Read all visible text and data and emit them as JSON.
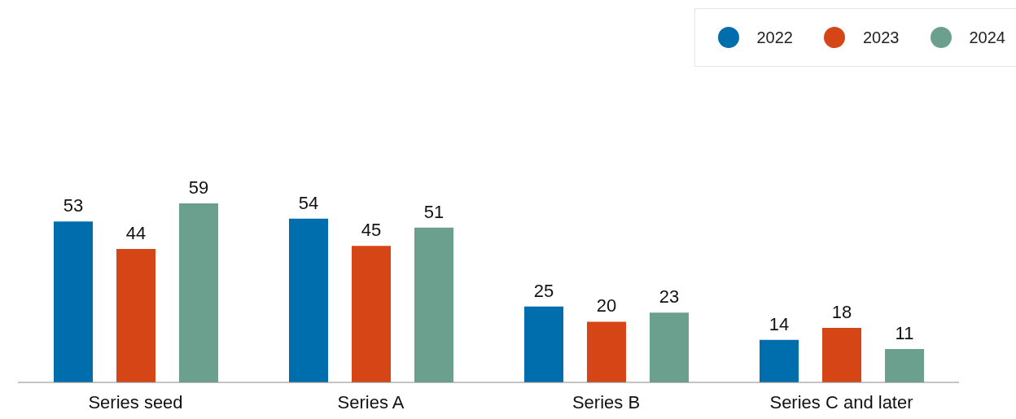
{
  "chart_data": {
    "type": "bar",
    "categories": [
      "Series seed",
      "Series A",
      "Series B",
      "Series C and later"
    ],
    "series": [
      {
        "name": "2022",
        "color": "#006ead",
        "values": [
          53,
          54,
          25,
          14
        ]
      },
      {
        "name": "2023",
        "color": "#d54516",
        "values": [
          44,
          45,
          20,
          18
        ]
      },
      {
        "name": "2024",
        "color": "#6ba08e",
        "values": [
          59,
          51,
          23,
          11
        ]
      }
    ],
    "data_labels": true,
    "legend": "top right",
    "grid": false
  }
}
